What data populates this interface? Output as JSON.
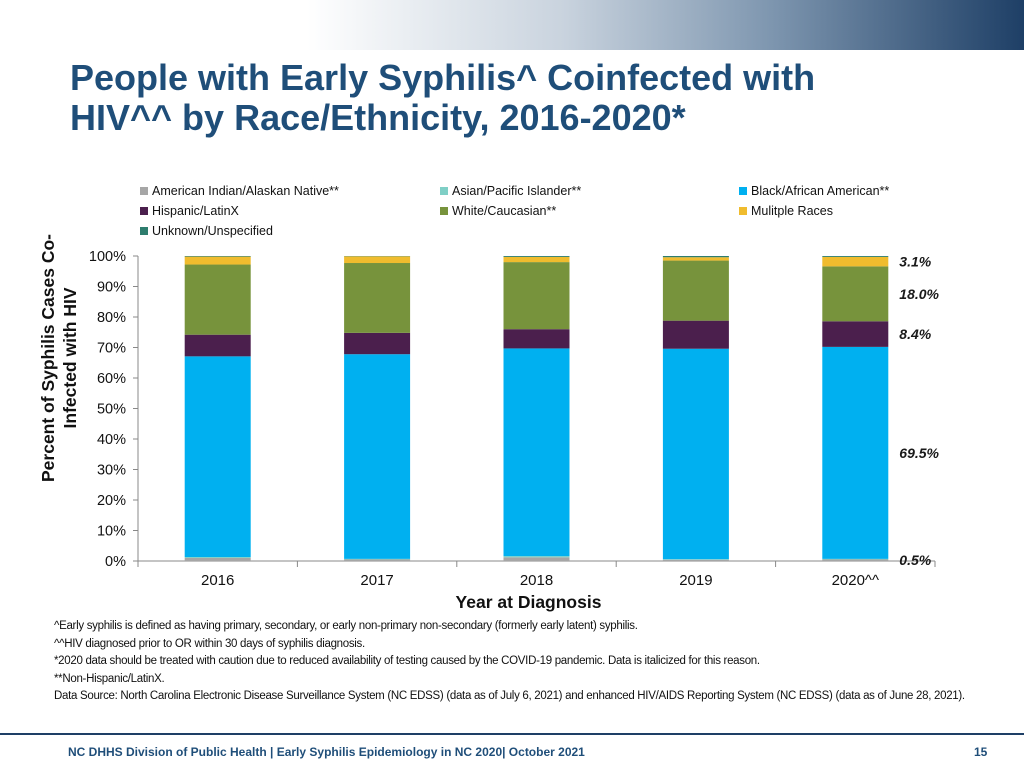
{
  "slide": {
    "title_line1": "People with Early Syphilis^ Coinfected with",
    "title_line2": "HIV^^ by Race/Ethnicity, 2016-2020*",
    "footnotes": [
      "^Early syphilis is defined as having primary, secondary, or early non-primary non-secondary (formerly early latent) syphilis.",
      "^^HIV diagnosed prior to OR within 30 days of syphilis diagnosis.",
      "*2020 data should be treated with caution due to reduced availability of testing caused by the COVID-19 pandemic. Data is italicized for this reason.",
      "**Non-Hispanic/LatinX.",
      "Data Source: North Carolina Electronic Disease Surveillance System (NC EDSS)  (data as of July 6, 2021) and enhanced HIV/AIDS Reporting System (NC EDSS)  (data as of June 28, 2021)."
    ],
    "footer": "NC DHHS Division of Public Health | Early Syphilis Epidemiology in NC 2020| October 2021",
    "page_number": "15",
    "colors": {
      "title": "#1f4e79",
      "band_dark": "#1e3f66"
    }
  },
  "chart_data": {
    "type": "bar",
    "stacked": true,
    "title": "",
    "xlabel": "Year at Diagnosis",
    "ylabel_line1": "Percent  of Syphilis Cases Co-",
    "ylabel_line2": "Infected with HIV",
    "ylim": [
      0,
      100
    ],
    "yticks": [
      "0%",
      "10%",
      "20%",
      "30%",
      "40%",
      "50%",
      "60%",
      "70%",
      "80%",
      "90%",
      "100%"
    ],
    "categories": [
      "2016",
      "2017",
      "2018",
      "2019",
      "2020^^"
    ],
    "legend_position": "top",
    "series": [
      {
        "name": "American Indian/Alaskan Native**",
        "color": "#a6a6a6",
        "values": [
          1.0,
          0.5,
          1.2,
          0.4,
          0.5
        ]
      },
      {
        "name": "Asian/Pacific Islander**",
        "color": "#7fcfc6",
        "values": [
          0.3,
          0.2,
          0.4,
          0.2,
          0.2
        ]
      },
      {
        "name": "Black/African American**",
        "color": "#00b0f0",
        "values": [
          65.8,
          67.1,
          68.1,
          69.0,
          69.5
        ]
      },
      {
        "name": "Hispanic/LatinX",
        "color": "#4b1f4d",
        "values": [
          7.1,
          7.0,
          6.3,
          9.2,
          8.4
        ]
      },
      {
        "name": "White/Caucasian**",
        "color": "#77933c",
        "values": [
          23.0,
          22.9,
          22.0,
          19.7,
          18.0
        ]
      },
      {
        "name": "Mulitple Races",
        "color": "#f0bc2e",
        "values": [
          2.6,
          2.2,
          1.7,
          1.1,
          3.1
        ]
      },
      {
        "name": "Unknown/Unspecified",
        "color": "#2e7d6e",
        "values": [
          0.2,
          0.1,
          0.3,
          0.4,
          0.3
        ]
      }
    ],
    "annotations": [
      {
        "series": "Mulitple Races",
        "category": "2020^^",
        "label": "3.1%"
      },
      {
        "series": "White/Caucasian**",
        "category": "2020^^",
        "label": "18.0%"
      },
      {
        "series": "Hispanic/LatinX",
        "category": "2020^^",
        "label": "8.4%"
      },
      {
        "series": "Black/African American**",
        "category": "2020^^",
        "label": "69.5%"
      },
      {
        "series": "American Indian/Alaskan Native**",
        "category": "2020^^",
        "label": "0.5%"
      }
    ]
  }
}
